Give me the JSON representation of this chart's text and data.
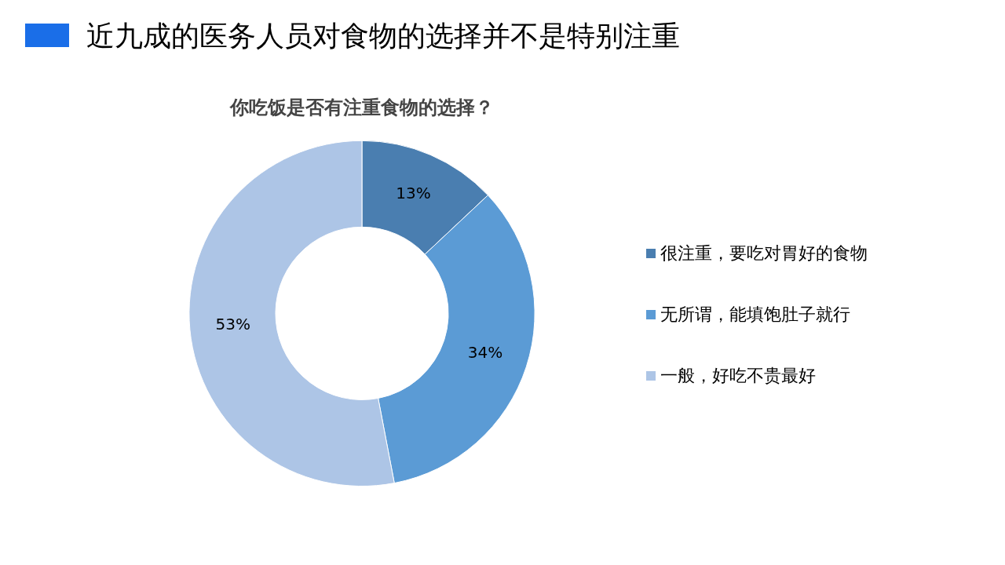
{
  "chart_data": {
    "type": "donut",
    "title": "近九成的医务人员对食物的选择并不是特别注重",
    "subtitle": "你吃饭是否有注重食物的选择？",
    "categories": [
      "很注重，要吃对胃好的食物",
      "无所谓，能填饱肚子就行",
      "一般，好吃不贵最好"
    ],
    "values": [
      13,
      34,
      53
    ],
    "colors": [
      "#4a7eb0",
      "#5b9bd5",
      "#adc5e6"
    ],
    "value_labels": [
      "13%",
      "34%",
      "53%"
    ],
    "legend": "right"
  }
}
